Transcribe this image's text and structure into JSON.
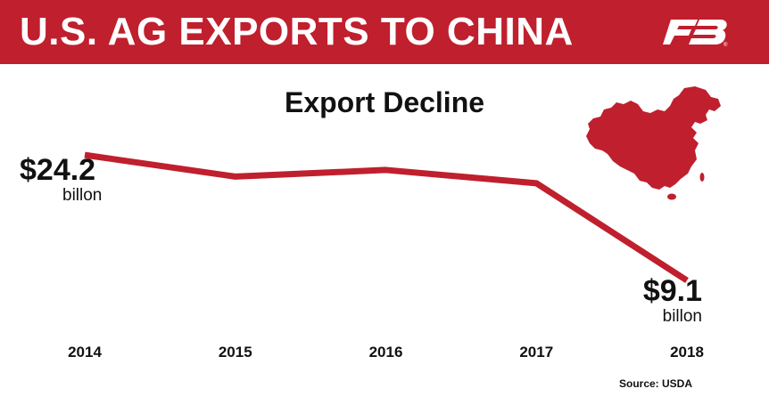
{
  "header": {
    "title": "U.S. AG EXPORTS TO CHINA",
    "logo_icon": "farm-bureau-fb-logo-icon",
    "background_color": "#c01f2e"
  },
  "map_icon": "china-map-icon",
  "source": "Source: USDA",
  "chart_data": {
    "type": "line",
    "title": "Export Decline",
    "categories": [
      "2014",
      "2015",
      "2016",
      "2017",
      "2018"
    ],
    "series": [
      {
        "values": [
          24.2,
          21.6,
          22.4,
          20.8,
          9.1
        ],
        "color": "#c01f2e"
      }
    ],
    "ylim": [
      0,
      30
    ],
    "grid": false,
    "annotations": [
      {
        "category": "2014",
        "value_text": "$24.2",
        "unit_text": "billon"
      },
      {
        "category": "2018",
        "value_text": "$9.1",
        "unit_text": "billon"
      }
    ]
  }
}
